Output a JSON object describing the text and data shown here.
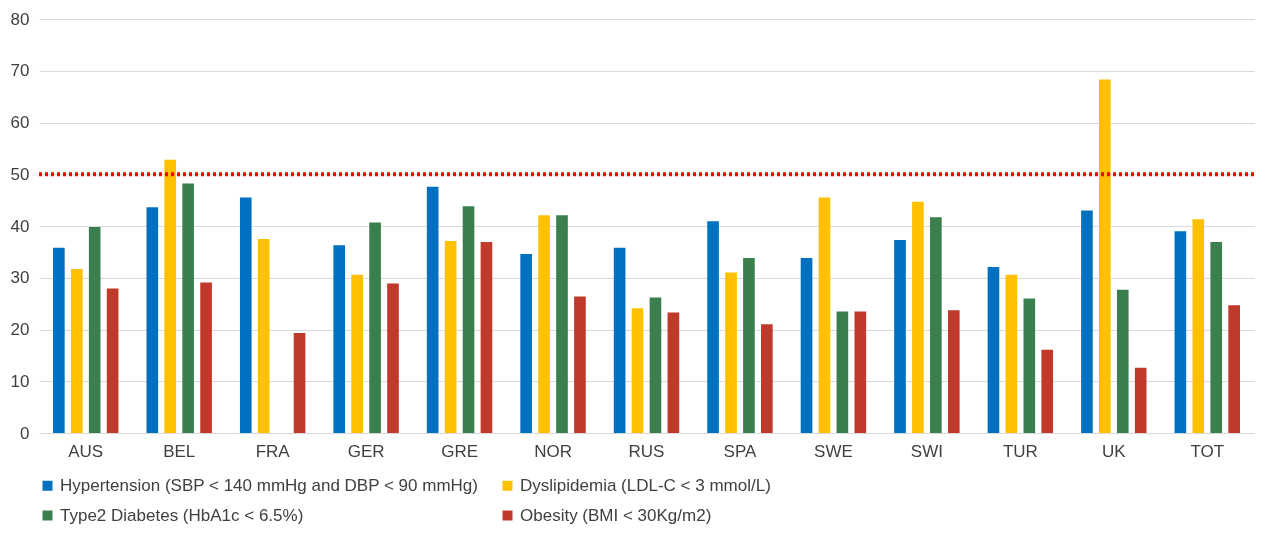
{
  "chart_data": {
    "type": "bar",
    "categories": [
      "AUS",
      "BEL",
      "FRA",
      "GER",
      "GRE",
      "NOR",
      "RUS",
      "SPA",
      "SWE",
      "SWI",
      "TUR",
      "UK",
      "TOT"
    ],
    "series": [
      {
        "name": "Hypertension (SBP < 140 mmHg and DBP < 90 mmHg)",
        "color": "#0070c0",
        "values": [
          35.8,
          43.6,
          45.5,
          36.3,
          47.6,
          34.6,
          35.8,
          40.9,
          33.8,
          37.3,
          32.1,
          43.0,
          39.0
        ]
      },
      {
        "name": "Dyslipidemia (LDL-C < 3 mmol/L)",
        "color": "#ffc000",
        "values": [
          31.7,
          52.8,
          37.5,
          30.6,
          37.1,
          42.1,
          24.1,
          31.0,
          45.5,
          44.7,
          30.6,
          68.3,
          41.3
        ]
      },
      {
        "name": "Type2 Diabetes (HbA1c < 6.5%)",
        "color": "#3b7f4f",
        "values": [
          39.8,
          48.2,
          null,
          40.7,
          43.8,
          42.1,
          26.2,
          33.8,
          23.5,
          41.7,
          26.0,
          27.7,
          36.9
        ]
      },
      {
        "name": "Obesity (BMI < 30Kg/m2)",
        "color": "#c0392b",
        "values": [
          27.9,
          29.1,
          19.3,
          28.9,
          36.9,
          26.4,
          23.3,
          21.0,
          23.5,
          23.7,
          16.1,
          12.6,
          24.7
        ]
      }
    ],
    "ylim": [
      0,
      80
    ],
    "yticks": [
      0,
      10,
      20,
      30,
      40,
      50,
      60,
      70,
      80
    ],
    "grid": "y",
    "legend": "bottom",
    "ref_lines": [
      {
        "axis": "y",
        "value": 50,
        "color": "#ff0000",
        "line_style": "dotted"
      }
    ]
  }
}
